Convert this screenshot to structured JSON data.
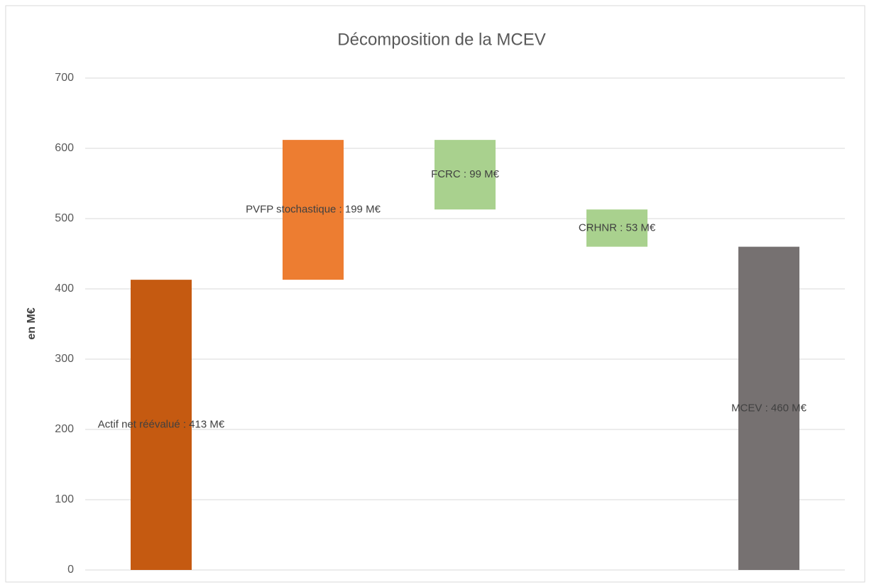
{
  "chart_data": {
    "type": "waterfall",
    "title": "Décomposition de la MCEV",
    "y_label": "en M€",
    "values": [
      413,
      199,
      99,
      53,
      460
    ],
    "value_labels": [
      "Actif net réévalué : 413 M€",
      "PVFP stochastique : 199 M€",
      "FCRC : 99 M€",
      "CRHNR : 53 M€",
      "MCEV : 460 M€"
    ],
    "measure": [
      "absolute",
      "increase",
      "decrease",
      "decrease",
      "total"
    ],
    "colors": [
      "#c55a11",
      "#ed7d31",
      "#a9d18e",
      "#a9d18e",
      "#767171"
    ],
    "ylim": [
      0,
      700
    ],
    "yticks": [
      0,
      100,
      200,
      300,
      400,
      500,
      600,
      700
    ],
    "grid": true
  }
}
